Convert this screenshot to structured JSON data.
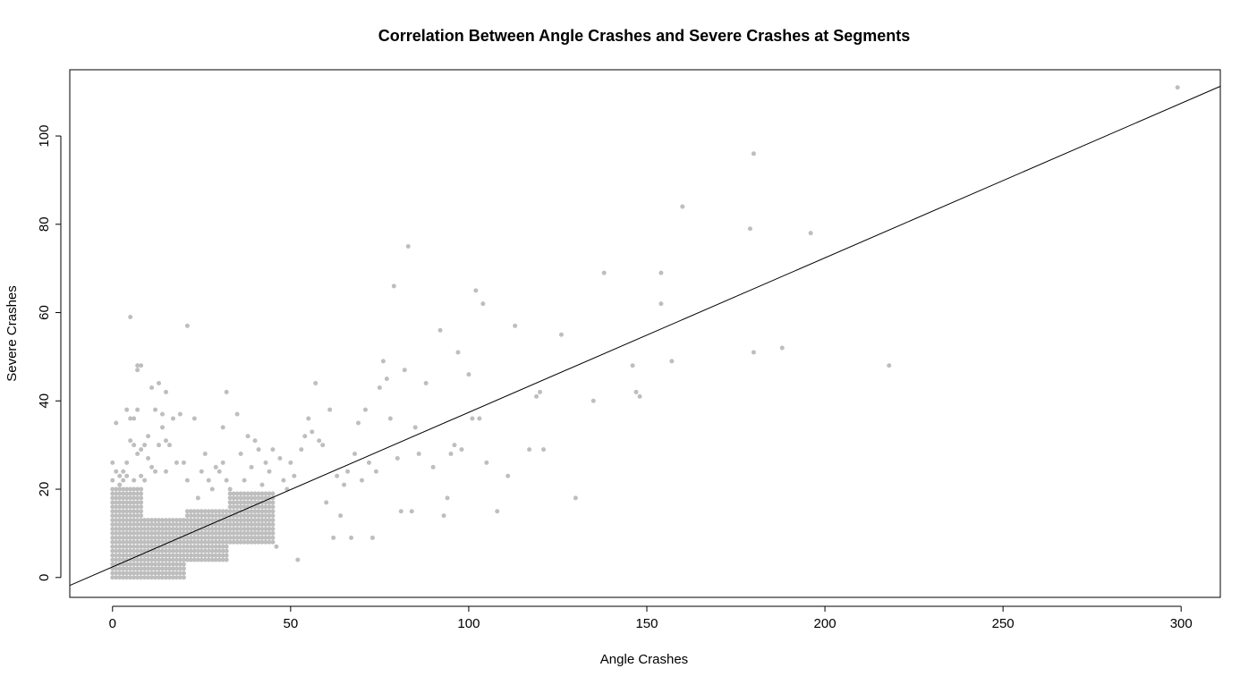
{
  "chart_data": {
    "type": "scatter",
    "title": "Correlation Between Angle Crashes and Severe Crashes at Segments",
    "xlabel": "Angle Crashes",
    "ylabel": "Severe Crashes",
    "xlim": [
      -12,
      311
    ],
    "ylim": [
      -4.5,
      115
    ],
    "x_ticks": [
      0,
      50,
      100,
      150,
      200,
      250,
      300
    ],
    "y_ticks": [
      0,
      20,
      40,
      60,
      80,
      100
    ],
    "x_tick_labels": [
      "0",
      "50",
      "100",
      "150",
      "200",
      "250",
      "300"
    ],
    "y_tick_labels": [
      "0",
      "20",
      "40",
      "60",
      "80",
      "100"
    ],
    "grid": false,
    "legend": "none",
    "point_color": "#bebebe",
    "line_color": "#000000",
    "trend_line": {
      "intercept": 2.4,
      "slope": 0.35
    },
    "point_grid": [
      {
        "x_range": [
          0,
          8
        ],
        "y_range": [
          0,
          20
        ],
        "x_step": 1,
        "y_step": 1
      },
      {
        "x_range": [
          9,
          20
        ],
        "y_range": [
          0,
          13
        ],
        "x_step": 1,
        "y_step": 1
      },
      {
        "x_range": [
          21,
          32
        ],
        "y_range": [
          4,
          15
        ],
        "x_step": 1,
        "y_step": 1
      },
      {
        "x_range": [
          33,
          45
        ],
        "y_range": [
          8,
          19
        ],
        "x_step": 1,
        "y_step": 1
      }
    ],
    "points": [
      [
        0,
        26
      ],
      [
        0,
        22
      ],
      [
        1,
        35
      ],
      [
        1,
        24
      ],
      [
        2,
        23
      ],
      [
        2,
        21
      ],
      [
        3,
        24
      ],
      [
        3,
        22
      ],
      [
        4,
        26
      ],
      [
        4,
        38
      ],
      [
        4,
        23
      ],
      [
        5,
        36
      ],
      [
        5,
        59
      ],
      [
        5,
        31
      ],
      [
        6,
        36
      ],
      [
        6,
        30
      ],
      [
        6,
        22
      ],
      [
        7,
        38
      ],
      [
        7,
        47
      ],
      [
        7,
        48
      ],
      [
        7,
        28
      ],
      [
        8,
        48
      ],
      [
        8,
        29
      ],
      [
        8,
        23
      ],
      [
        9,
        30
      ],
      [
        9,
        22
      ],
      [
        10,
        32
      ],
      [
        10,
        27
      ],
      [
        11,
        43
      ],
      [
        11,
        25
      ],
      [
        12,
        38
      ],
      [
        12,
        24
      ],
      [
        13,
        44
      ],
      [
        13,
        30
      ],
      [
        14,
        37
      ],
      [
        14,
        34
      ],
      [
        15,
        42
      ],
      [
        15,
        31
      ],
      [
        15,
        24
      ],
      [
        16,
        30
      ],
      [
        17,
        36
      ],
      [
        18,
        26
      ],
      [
        19,
        37
      ],
      [
        20,
        26
      ],
      [
        21,
        57
      ],
      [
        21,
        22
      ],
      [
        23,
        36
      ],
      [
        24,
        18
      ],
      [
        25,
        24
      ],
      [
        26,
        28
      ],
      [
        27,
        22
      ],
      [
        28,
        20
      ],
      [
        29,
        25
      ],
      [
        30,
        24
      ],
      [
        31,
        26
      ],
      [
        31,
        34
      ],
      [
        32,
        42
      ],
      [
        32,
        22
      ],
      [
        33,
        20
      ],
      [
        35,
        37
      ],
      [
        36,
        28
      ],
      [
        37,
        22
      ],
      [
        38,
        32
      ],
      [
        39,
        25
      ],
      [
        40,
        31
      ],
      [
        41,
        29
      ],
      [
        42,
        21
      ],
      [
        43,
        26
      ],
      [
        44,
        24
      ],
      [
        45,
        29
      ],
      [
        46,
        7
      ],
      [
        47,
        27
      ],
      [
        48,
        22
      ],
      [
        49,
        20
      ],
      [
        50,
        26
      ],
      [
        51,
        23
      ],
      [
        52,
        4
      ],
      [
        53,
        29
      ],
      [
        54,
        32
      ],
      [
        55,
        36
      ],
      [
        56,
        33
      ],
      [
        57,
        44
      ],
      [
        58,
        31
      ],
      [
        59,
        30
      ],
      [
        60,
        17
      ],
      [
        61,
        38
      ],
      [
        62,
        9
      ],
      [
        63,
        23
      ],
      [
        64,
        14
      ],
      [
        65,
        21
      ],
      [
        66,
        24
      ],
      [
        67,
        9
      ],
      [
        68,
        28
      ],
      [
        69,
        35
      ],
      [
        70,
        22
      ],
      [
        71,
        38
      ],
      [
        72,
        26
      ],
      [
        73,
        9
      ],
      [
        74,
        24
      ],
      [
        75,
        43
      ],
      [
        76,
        49
      ],
      [
        77,
        45
      ],
      [
        78,
        36
      ],
      [
        79,
        66
      ],
      [
        80,
        27
      ],
      [
        81,
        15
      ],
      [
        82,
        47
      ],
      [
        83,
        75
      ],
      [
        84,
        15
      ],
      [
        85,
        34
      ],
      [
        86,
        28
      ],
      [
        88,
        44
      ],
      [
        90,
        25
      ],
      [
        92,
        56
      ],
      [
        93,
        14
      ],
      [
        94,
        18
      ],
      [
        95,
        28
      ],
      [
        96,
        30
      ],
      [
        97,
        51
      ],
      [
        98,
        29
      ],
      [
        100,
        46
      ],
      [
        101,
        36
      ],
      [
        102,
        65
      ],
      [
        103,
        36
      ],
      [
        104,
        62
      ],
      [
        105,
        26
      ],
      [
        108,
        15
      ],
      [
        111,
        23
      ],
      [
        113,
        57
      ],
      [
        117,
        29
      ],
      [
        119,
        41
      ],
      [
        120,
        42
      ],
      [
        121,
        29
      ],
      [
        126,
        55
      ],
      [
        130,
        18
      ],
      [
        135,
        40
      ],
      [
        138,
        69
      ],
      [
        146,
        48
      ],
      [
        147,
        42
      ],
      [
        148,
        41
      ],
      [
        154,
        69
      ],
      [
        154,
        62
      ],
      [
        157,
        49
      ],
      [
        160,
        84
      ],
      [
        179,
        79
      ],
      [
        180,
        96
      ],
      [
        180,
        51
      ],
      [
        188,
        52
      ],
      [
        196,
        78
      ],
      [
        218,
        48
      ],
      [
        299,
        111
      ]
    ]
  }
}
